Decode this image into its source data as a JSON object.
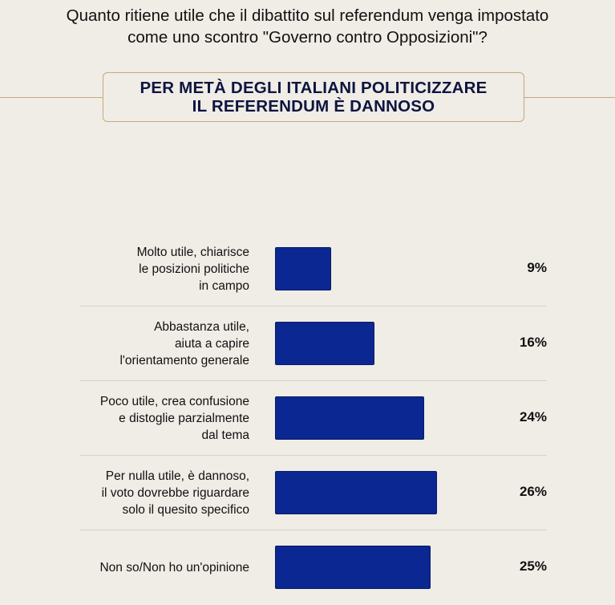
{
  "question": {
    "line1": "Quanto ritiene utile che il dibattito sul referendum venga impostato",
    "line2": "come uno scontro \"Governo contro Opposizioni\"?"
  },
  "banner": {
    "line1": "PER METÀ DEGLI ITALIANI POLITICIZZARE",
    "line2": "IL REFERENDUM È DANNOSO"
  },
  "colors": {
    "bar": "#0b2791",
    "accent_border": "#c9a97c",
    "background": "#f0ece6"
  },
  "chart_data": {
    "type": "bar",
    "orientation": "horizontal",
    "unit": "%",
    "categories": [
      [
        "Molto utile, chiarisce",
        "le posizioni politiche",
        "in campo"
      ],
      [
        "Abbastanza utile,",
        "aiuta a capire",
        "l'orientamento generale"
      ],
      [
        "Poco utile, crea confusione",
        "e distoglie parzialmente",
        "dal tema"
      ],
      [
        "Per nulla utile, è dannoso,",
        "il voto dovrebbe riguardare",
        "solo il quesito specifico"
      ],
      [
        "Non so/Non ho un'opinione"
      ]
    ],
    "values": [
      9,
      16,
      24,
      26,
      25
    ],
    "value_labels": [
      "9%",
      "16%",
      "24%",
      "26%",
      "25%"
    ]
  }
}
